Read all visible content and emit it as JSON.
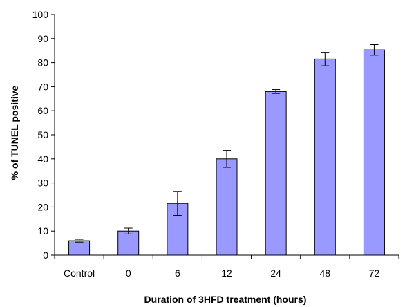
{
  "chart_data": {
    "type": "bar",
    "title": "",
    "xlabel": "Duration of 3HFD treatment (hours)",
    "ylabel": "% of TUNEL positive",
    "categories": [
      "Control",
      "0",
      "6",
      "12",
      "24",
      "48",
      "72"
    ],
    "values": [
      6,
      10,
      21.5,
      40,
      68,
      81.5,
      85.3
    ],
    "errors": [
      0.6,
      1.2,
      5,
      3.5,
      0.8,
      2.8,
      2.2
    ],
    "ylim": [
      0,
      100
    ],
    "yticks": [
      "0",
      "10",
      "20",
      "30",
      "40",
      "50",
      "60",
      "70",
      "80",
      "90",
      "100"
    ],
    "grid": false,
    "legend": "none",
    "colors": {
      "bar_fill": "#9999ff",
      "bar_stroke": "#000000",
      "axis": "#000000"
    }
  }
}
